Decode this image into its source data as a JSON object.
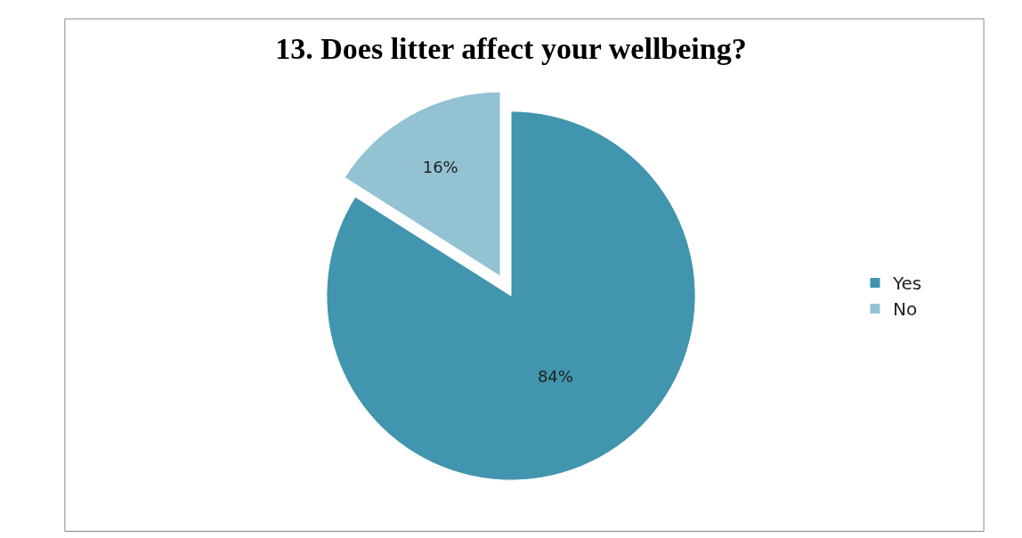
{
  "chart_data": {
    "type": "pie",
    "title": "13. Does litter affect your wellbeing?",
    "categories": [
      "Yes",
      "No"
    ],
    "values": [
      84,
      16
    ],
    "colors": [
      "#4195ae",
      "#93c2d3"
    ],
    "value_labels": [
      "84%",
      "16%"
    ],
    "legend": "right"
  }
}
